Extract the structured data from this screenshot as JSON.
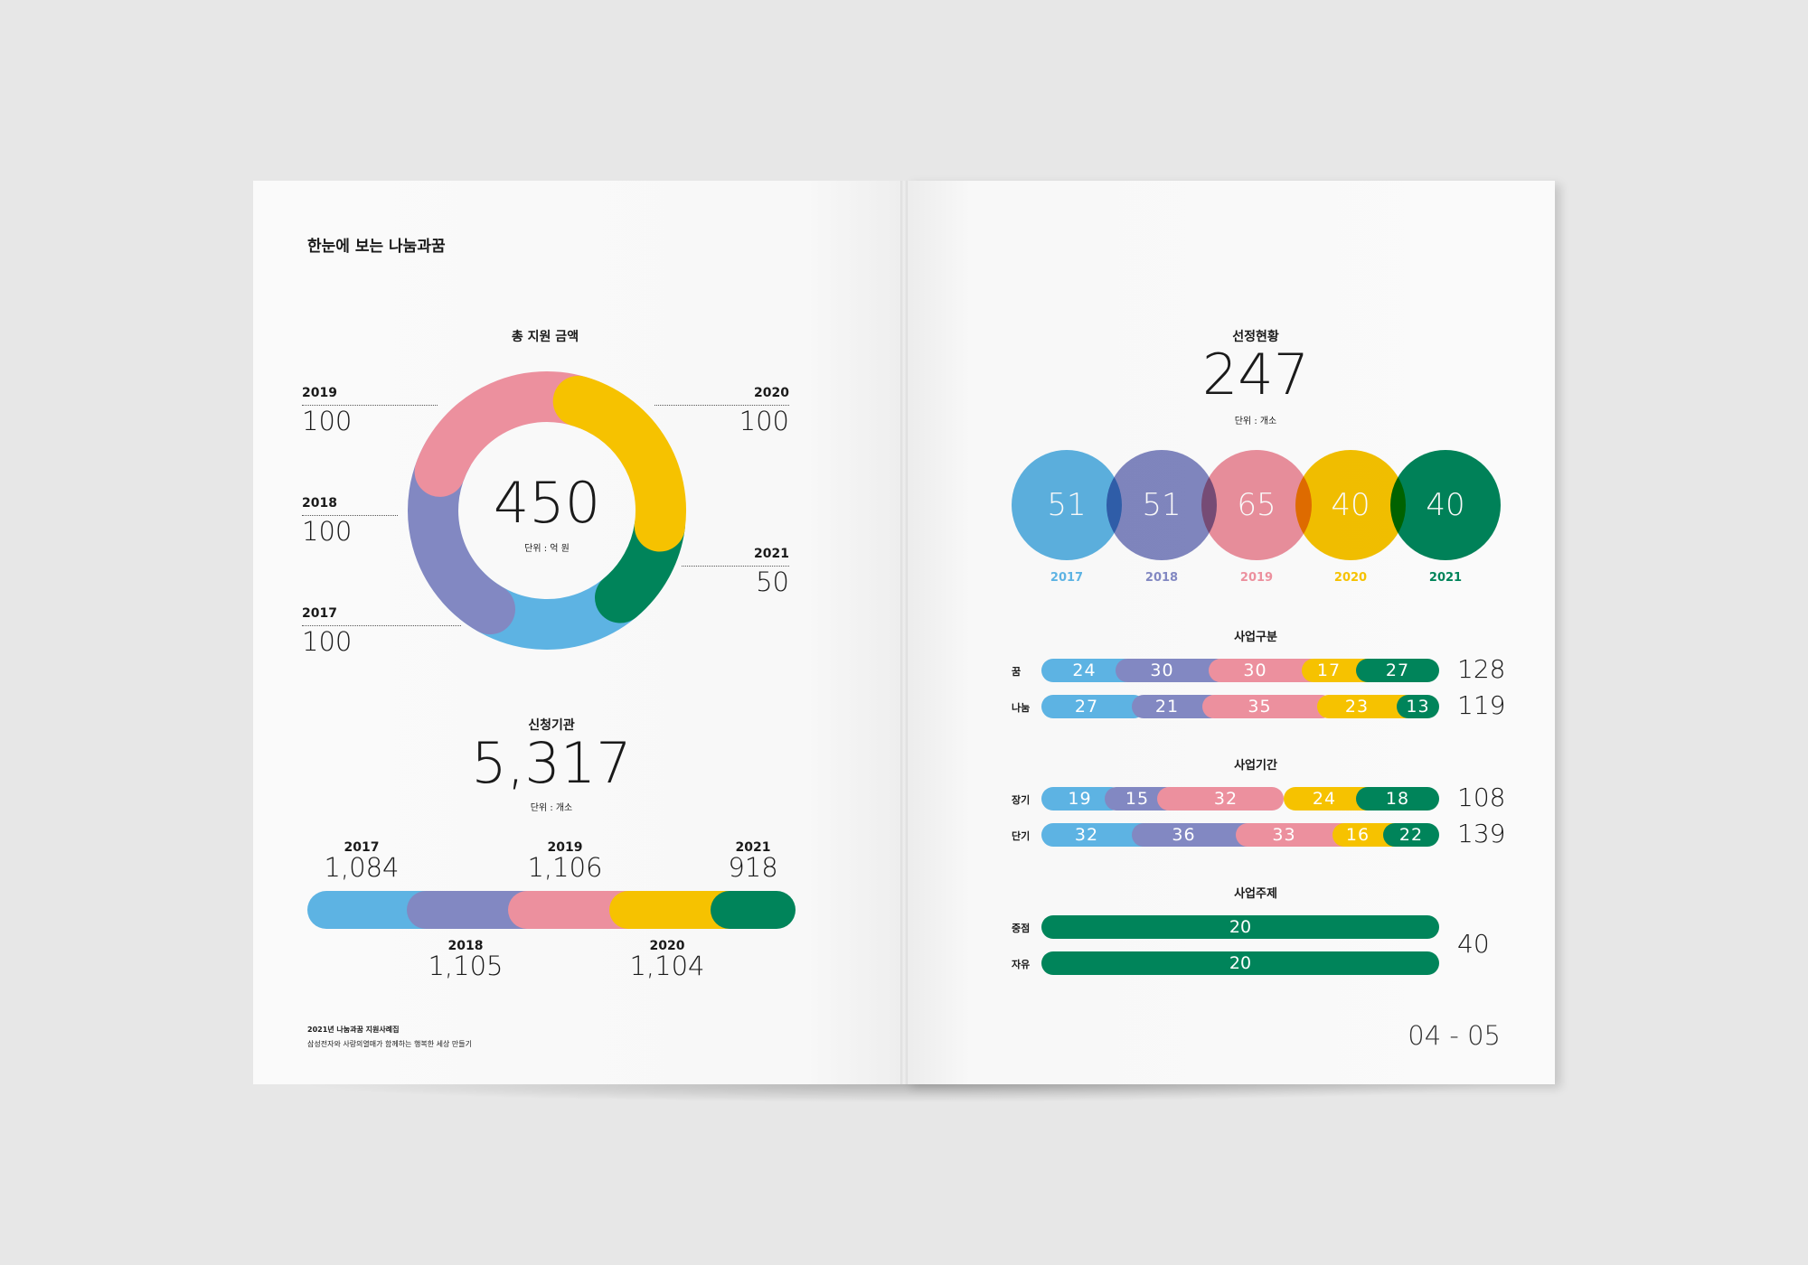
{
  "colors": {
    "blue": "#5db3e3",
    "purple": "#8288c2",
    "pink": "#ec909e",
    "yellow": "#f6c200",
    "green": "#00845a"
  },
  "left": {
    "header": "한눈에 보는 나눔과꿈",
    "support": {
      "title": "총 지원 금액",
      "total": "450",
      "unit": "단위 : 억 원",
      "items": [
        {
          "year": "2019",
          "value": "100"
        },
        {
          "year": "2018",
          "value": "100"
        },
        {
          "year": "2017",
          "value": "100"
        },
        {
          "year": "2020",
          "value": "100"
        },
        {
          "year": "2021",
          "value": "50"
        }
      ]
    },
    "applicants": {
      "title": "신청기관",
      "total": "5,317",
      "unit": "단위 : 개소",
      "items": [
        {
          "year": "2017",
          "value": "1,084"
        },
        {
          "year": "2019",
          "value": "1,106"
        },
        {
          "year": "2021",
          "value": "918"
        },
        {
          "year": "2018",
          "value": "1,105"
        },
        {
          "year": "2020",
          "value": "1,104"
        }
      ]
    },
    "footer": {
      "line1": "2021년 나눔과꿈 지원사례집",
      "line2": "삼성전자와 사랑의열매가 함께하는 행복한 세상 만들기"
    }
  },
  "right": {
    "selection": {
      "title": "선정현황",
      "total": "247",
      "unit": "단위 : 개소",
      "circles": [
        {
          "value": "51",
          "year": "2017"
        },
        {
          "value": "51",
          "year": "2018"
        },
        {
          "value": "65",
          "year": "2019"
        },
        {
          "value": "40",
          "year": "2020"
        },
        {
          "value": "40",
          "year": "2021"
        }
      ]
    },
    "business_type": {
      "title": "사업구분",
      "rows": [
        {
          "label": "꿈",
          "values": [
            "24",
            "30",
            "30",
            "17",
            "27"
          ],
          "total": "128"
        },
        {
          "label": "나눔",
          "values": [
            "27",
            "21",
            "35",
            "23",
            "13"
          ],
          "total": "119"
        }
      ]
    },
    "business_period": {
      "title": "사업기간",
      "rows": [
        {
          "label": "장기",
          "values": [
            "19",
            "15",
            "32",
            "24",
            "18"
          ],
          "total": "108"
        },
        {
          "label": "단기",
          "values": [
            "32",
            "36",
            "33",
            "16",
            "22"
          ],
          "total": "139"
        }
      ]
    },
    "business_theme": {
      "title": "사업주제",
      "rows": [
        {
          "label": "중점",
          "value": "20"
        },
        {
          "label": "자유",
          "value": "20"
        }
      ],
      "total": "40"
    },
    "page_number": "04 - 05"
  }
}
